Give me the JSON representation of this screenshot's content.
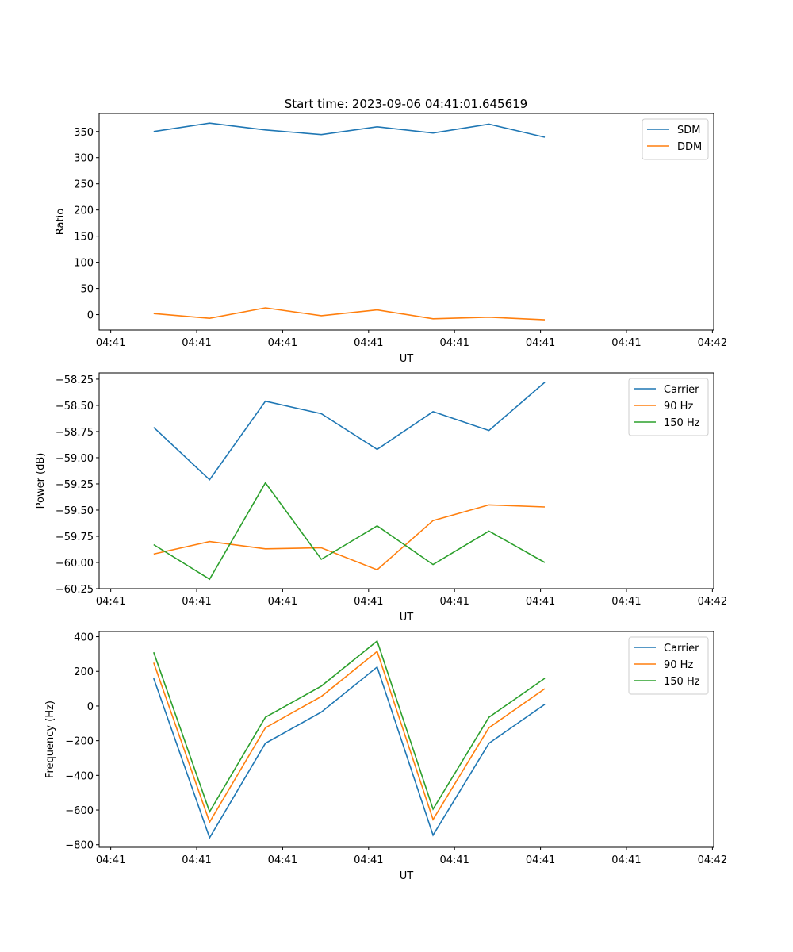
{
  "figure_title": "Start time: 2023-09-06 04:41:01.645619",
  "chart_data": [
    {
      "type": "line",
      "xlabel": "UT",
      "ylabel": "Ratio",
      "xtick_labels": [
        "04:41",
        "04:41",
        "04:41",
        "04:41",
        "04:41",
        "04:41",
        "04:41",
        "04:42"
      ],
      "xtick_values": [
        0,
        1,
        2,
        3,
        4,
        5,
        6,
        7
      ],
      "xlim": [
        -0.135,
        7.015
      ],
      "ylim": [
        -29.5,
        384.5
      ],
      "yticks": [
        0,
        50,
        100,
        150,
        200,
        250,
        300,
        350
      ],
      "ytick_labels": [
        "0",
        "50",
        "100",
        "150",
        "200",
        "250",
        "300",
        "350"
      ],
      "legend": "top-right",
      "x": [
        0.5,
        1.15,
        1.8,
        2.45,
        3.1,
        3.75,
        4.4,
        5.05
      ],
      "series": [
        {
          "name": "SDM",
          "color": "#1f77b4",
          "values": [
            350,
            366,
            353,
            344,
            359,
            347,
            364,
            339
          ]
        },
        {
          "name": "DDM",
          "color": "#ff7f0e",
          "values": [
            2,
            -7,
            13,
            -2,
            9,
            -8,
            -5,
            -10
          ]
        }
      ]
    },
    {
      "type": "line",
      "xlabel": "UT",
      "ylabel": "Power (dB)",
      "xtick_labels": [
        "04:41",
        "04:41",
        "04:41",
        "04:41",
        "04:41",
        "04:41",
        "04:41",
        "04:42"
      ],
      "xtick_values": [
        0,
        1,
        2,
        3,
        4,
        5,
        6,
        7
      ],
      "xlim": [
        -0.135,
        7.015
      ],
      "ylim": [
        -60.25,
        -58.19
      ],
      "yticks": [
        -60.25,
        -60.0,
        -59.75,
        -59.5,
        -59.25,
        -59.0,
        -58.75,
        -58.5,
        -58.25
      ],
      "ytick_labels": [
        "−60.25",
        "−60.00",
        "−59.75",
        "−59.50",
        "−59.25",
        "−59.00",
        "−58.75",
        "−58.50",
        "−58.25"
      ],
      "legend": "top-right",
      "x": [
        0.5,
        1.15,
        1.8,
        2.45,
        3.1,
        3.75,
        4.4,
        5.05
      ],
      "series": [
        {
          "name": "Carrier",
          "color": "#1f77b4",
          "values": [
            -58.71,
            -59.21,
            -58.46,
            -58.58,
            -58.92,
            -58.56,
            -58.74,
            -58.28
          ]
        },
        {
          "name": "90 Hz",
          "color": "#ff7f0e",
          "values": [
            -59.92,
            -59.8,
            -59.87,
            -59.86,
            -60.07,
            -59.6,
            -59.45,
            -59.47
          ]
        },
        {
          "name": "150 Hz",
          "color": "#2ca02c",
          "values": [
            -59.83,
            -60.16,
            -59.24,
            -59.97,
            -59.65,
            -60.02,
            -59.7,
            -60.0
          ]
        }
      ]
    },
    {
      "type": "line",
      "xlabel": "UT",
      "ylabel": "Frequency (Hz)",
      "xtick_labels": [
        "04:41",
        "04:41",
        "04:41",
        "04:41",
        "04:41",
        "04:41",
        "04:41",
        "04:42"
      ],
      "xtick_values": [
        0,
        1,
        2,
        3,
        4,
        5,
        6,
        7
      ],
      "xlim": [
        -0.135,
        7.015
      ],
      "ylim": [
        -815,
        430
      ],
      "yticks": [
        -800,
        -600,
        -400,
        -200,
        0,
        200,
        400
      ],
      "ytick_labels": [
        "−800",
        "−600",
        "−400",
        "−200",
        "0",
        "200",
        "400"
      ],
      "legend": "top-right",
      "x": [
        0.5,
        1.15,
        1.8,
        2.45,
        3.1,
        3.75,
        4.4,
        5.05
      ],
      "series": [
        {
          "name": "Carrier",
          "color": "#1f77b4",
          "values": [
            160,
            -760,
            -215,
            -35,
            225,
            -745,
            -215,
            10
          ]
        },
        {
          "name": "90 Hz",
          "color": "#ff7f0e",
          "values": [
            250,
            -670,
            -125,
            55,
            315,
            -655,
            -125,
            100
          ]
        },
        {
          "name": "150 Hz",
          "color": "#2ca02c",
          "values": [
            310,
            -610,
            -65,
            115,
            375,
            -595,
            -65,
            160
          ]
        }
      ]
    }
  ]
}
